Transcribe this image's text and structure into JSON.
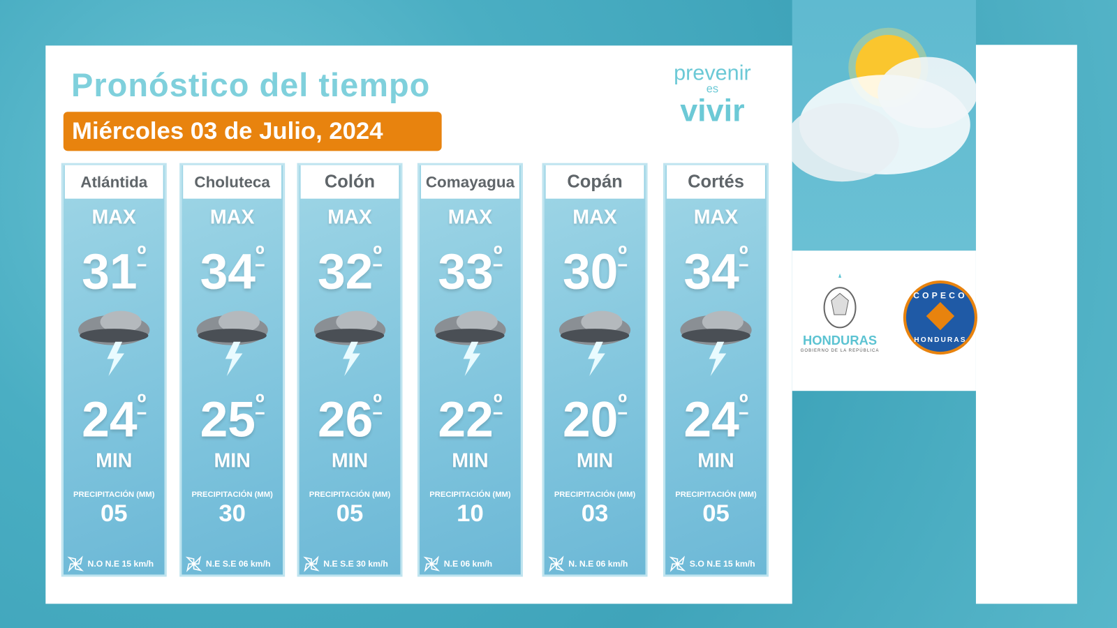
{
  "header": {
    "title": "Pronóstico del tiempo",
    "date": "Miércoles 03 de  Julio, 2024",
    "slogan_top": "prevenir",
    "slogan_mid": "es",
    "slogan_bottom": "vivir"
  },
  "labels": {
    "max": "MAX",
    "min": "MIN",
    "precip": "PRECIPITACIÓN (MM)"
  },
  "departments": [
    {
      "name": "Atlántida",
      "max": "31",
      "min": "24",
      "precip": "05",
      "wind": "N.O N.E  15 km/h"
    },
    {
      "name": "Choluteca",
      "max": "34",
      "min": "25",
      "precip": "30",
      "wind": "N.E  S.E 06 km/h"
    },
    {
      "name": "Colón",
      "max": "32",
      "min": "26",
      "precip": "05",
      "wind": "N.E S.E   30  km/h"
    },
    {
      "name": "Comayagua",
      "max": "33",
      "min": "22",
      "precip": "10",
      "wind": "N.E    06 km/h"
    },
    {
      "name": "Copán",
      "max": "30",
      "min": "20",
      "precip": "03",
      "wind": "N.  N.E 06 km/h"
    },
    {
      "name": "Cortés",
      "max": "34",
      "min": "24",
      "precip": "05",
      "wind": "S.O  N.E 15 km/h"
    }
  ],
  "degree": "º",
  "logos": {
    "honduras": "HONDURAS",
    "honduras_sub": "GOBIERNO DE LA REPÚBLICA",
    "copeco": "COPECO",
    "copeco_sub": "HONDURAS"
  },
  "colors": {
    "background": "#4fb2c6",
    "title": "#7fd0dc",
    "date_badge": "#e8830e",
    "column": "#8ecbe0"
  },
  "weather_icon": "thunderstorm-icon",
  "wind_icon": "pinwheel-icon"
}
